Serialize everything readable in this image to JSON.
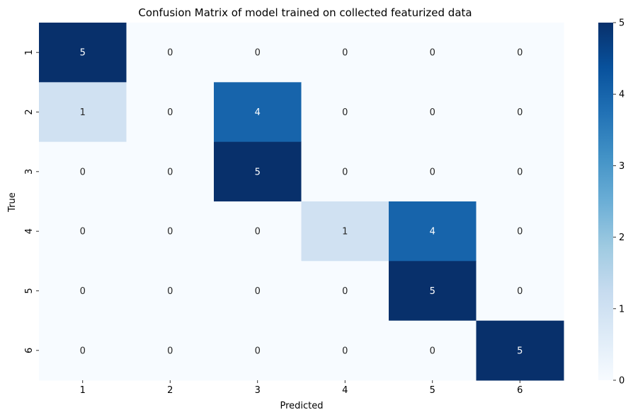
{
  "chart_data": {
    "type": "heatmap",
    "title": "Confusion Matrix of model trained on collected featurized data",
    "xlabel": "Predicted",
    "ylabel": "True",
    "x_categories": [
      "1",
      "2",
      "3",
      "4",
      "5",
      "6"
    ],
    "y_categories": [
      "1",
      "2",
      "3",
      "4",
      "5",
      "6"
    ],
    "matrix": [
      [
        5,
        0,
        0,
        0,
        0,
        0
      ],
      [
        1,
        0,
        4,
        0,
        0,
        0
      ],
      [
        0,
        0,
        5,
        0,
        0,
        0
      ],
      [
        0,
        0,
        0,
        1,
        4,
        0
      ],
      [
        0,
        0,
        0,
        0,
        5,
        0
      ],
      [
        0,
        0,
        0,
        0,
        0,
        5
      ]
    ],
    "value_range": [
      0,
      5
    ],
    "colorbar_ticks": [
      0,
      1,
      2,
      3,
      4,
      5
    ],
    "colormap": "Blues",
    "colormap_stops": [
      "#f7fbff",
      "#deebf7",
      "#c6dbef",
      "#9ecae1",
      "#6baed6",
      "#4292c6",
      "#2171b5",
      "#08519c",
      "#08306b"
    ],
    "grid": false,
    "annotations": true
  }
}
